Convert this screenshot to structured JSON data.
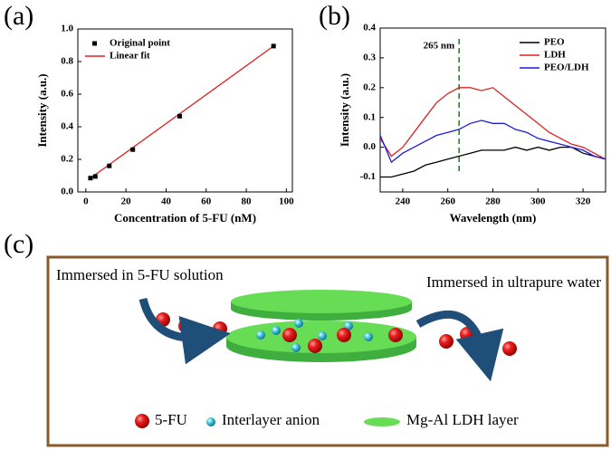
{
  "chart_data": [
    {
      "type": "scatter",
      "panel_label": "(a)",
      "x_label": "Concentration of 5-FU (nM)",
      "y_label": "Intensity (a.u.)",
      "xlim": [
        -4,
        103
      ],
      "ylim": [
        0,
        1
      ],
      "xticks": [
        0,
        20,
        40,
        60,
        80,
        100
      ],
      "yticks": [
        {
          "value": 0,
          "label": "0.0"
        },
        0.2,
        0.4,
        0.6,
        0.8,
        {
          "value": 1,
          "label": "1.0"
        }
      ],
      "grid": false,
      "legend": "top-left",
      "series": [
        {
          "name": "Original point",
          "color": "#000000",
          "style": "points",
          "x": [
            2.3,
            4.7,
            11.7,
            23.4,
            46.8,
            93.6
          ],
          "values": [
            0.085,
            0.095,
            0.16,
            0.26,
            0.465,
            0.895
          ]
        },
        {
          "name": "Linear fit",
          "color": "#e02020",
          "style": "line",
          "x": [
            2.3,
            93.6
          ],
          "values": [
            0.085,
            0.895
          ]
        }
      ]
    },
    {
      "type": "line",
      "panel_label": "(b)",
      "x_label": "Wavelength (nm)",
      "y_label": "Intensity (a.u.)",
      "xlim": [
        230,
        330
      ],
      "ylim": [
        -0.15,
        0.4
      ],
      "xticks": [
        240,
        260,
        280,
        300,
        320
      ],
      "yticks": [
        -0.1,
        {
          "value": 0,
          "label": "0.0"
        },
        0.1,
        0.2,
        0.3,
        0.4
      ],
      "grid": false,
      "legend": "top-right",
      "annotation": {
        "text": "265 nm",
        "x": 265,
        "color": "#1a7a1a"
      },
      "x": [
        230,
        235,
        240,
        245,
        250,
        255,
        260,
        265,
        270,
        275,
        280,
        285,
        290,
        295,
        300,
        305,
        310,
        315,
        320,
        325,
        330
      ],
      "series": [
        {
          "name": "PEO",
          "color": "#000000",
          "values": [
            -0.1,
            -0.1,
            -0.09,
            -0.08,
            -0.06,
            -0.05,
            -0.04,
            -0.03,
            -0.02,
            -0.01,
            -0.01,
            -0.01,
            0.0,
            -0.01,
            0.0,
            -0.01,
            0.0,
            0.0,
            -0.02,
            -0.03,
            -0.04
          ]
        },
        {
          "name": "LDH",
          "color": "#e02020",
          "values": [
            0.03,
            -0.03,
            0.0,
            0.05,
            0.1,
            0.15,
            0.18,
            0.2,
            0.2,
            0.19,
            0.2,
            0.17,
            0.14,
            0.11,
            0.08,
            0.05,
            0.03,
            0.01,
            0.0,
            -0.02,
            -0.04
          ]
        },
        {
          "name": "PEO/LDH",
          "color": "#1a1ae0",
          "values": [
            0.04,
            -0.05,
            -0.02,
            0.0,
            0.02,
            0.04,
            0.05,
            0.06,
            0.08,
            0.09,
            0.08,
            0.08,
            0.06,
            0.05,
            0.03,
            0.02,
            0.01,
            0.0,
            -0.01,
            -0.03,
            -0.04
          ]
        }
      ]
    }
  ],
  "diagram": {
    "panel_label": "(c)",
    "left_text": "Immersed in 5-FU solution",
    "right_text": "Immersed in ultrapure water",
    "legend": [
      "5-FU",
      "Interlayer anion",
      "Mg-Al LDH layer"
    ]
  }
}
